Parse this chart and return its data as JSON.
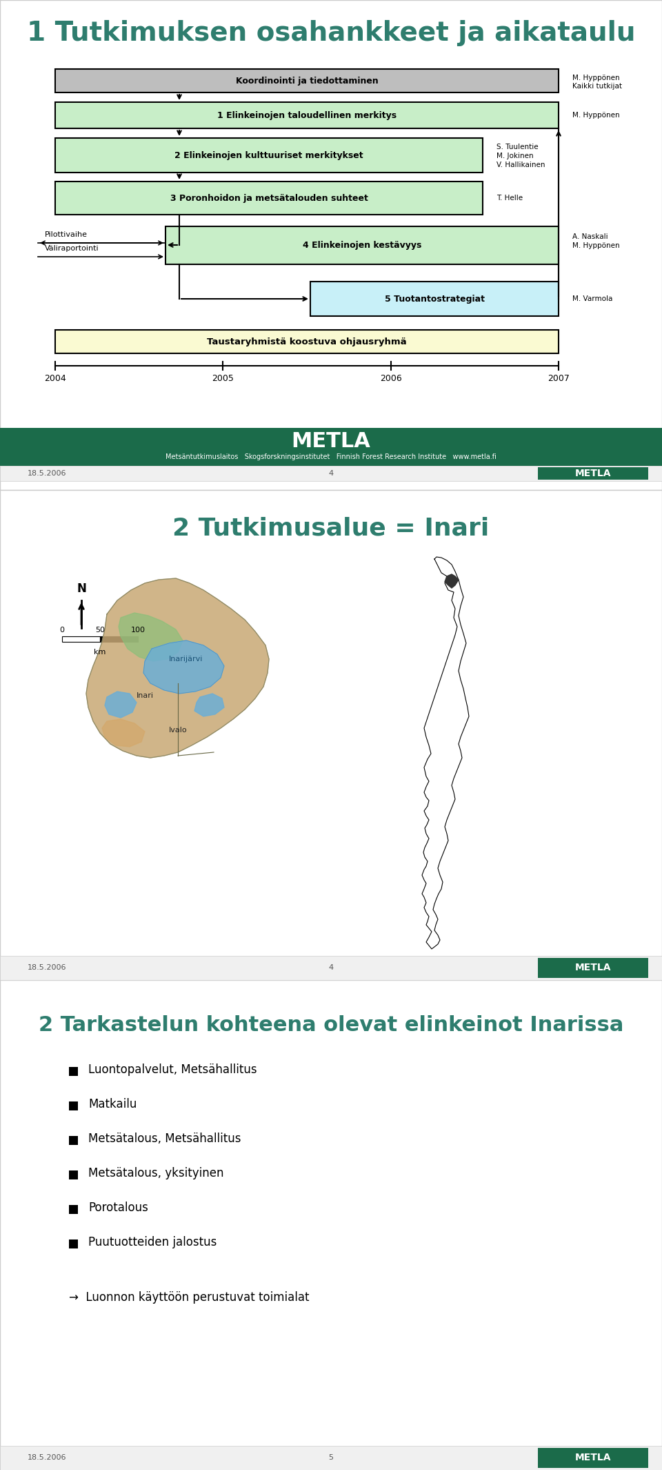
{
  "slide1_title": "1 Tutkimuksen osahankkeet ja aikataulu",
  "slide1_title_color": "#2E7D6E",
  "metla_bg": "#1B6B4A",
  "metla_text": "METLA",
  "metla_sub": "Metsäntutkimuslaitos   Skogsforskningsinstitutet   Finnish Forest Research Institute   www.metla.fi",
  "slide2_title": "2 Tutkimusalue = Inari",
  "slide2_title_color": "#2E7D6E",
  "slide3_title": "2 Tarkastelun kohteena olevat elinkeinot Inarissa",
  "slide3_title_color": "#2E7D6E",
  "slide3_bullets": [
    "Luontopalvelut, Metsähallitus",
    "Matkailu",
    "Metsätalous, Metsähallitus",
    "Metsätalous, yksityinen",
    "Porotalous",
    "Puutuotteiden jalostus"
  ],
  "slide3_arrow_text": "→  Luonnon käyttöön perustuvat toimialat",
  "footer_date": "18.5.2006",
  "footer_page4": "4",
  "footer_page5": "5",
  "koordinointi_label": "Koordinointi ja tiedottaminen",
  "koordinointi_bg": "#BEBEBE",
  "koordinointi_note": "M. Hyppönen\nKaikki tutkijat",
  "box1_label": "1 Elinkeinojen taloudellinen merkitys",
  "box1_bg": "#C8EEC8",
  "box1_note": "M. Hyppönen",
  "box2_label": "2 Elinkeinojen kulttuuriset merkitykset",
  "box2_bg": "#C8EEC8",
  "box2_note": "S. Tuulentie\nM. Jokinen\nV. Hallikainen",
  "box3_label": "3 Poronhoidon ja metsätalouden suhteet",
  "box3_bg": "#C8EEC8",
  "box3_note": "T. Helle",
  "box4_label": "4 Elinkeinojen kestävyys",
  "box4_bg": "#C8EEC8",
  "box4_note": "A. Naskali\nM. Hyppönen",
  "box5_label": "5 Tuotantostrategiat",
  "box5_bg": "#C8F0F8",
  "box5_note": "M. Varmola",
  "ohjaus_label": "Taustaryhmistä koostuva ohjausryhmä",
  "ohjaus_bg": "#FAFAD2",
  "pilotti_label": "Pilottivaihe",
  "valira_label": "Väliraportointi",
  "timeline_years": [
    "2004",
    "2005",
    "2006",
    "2007"
  ]
}
